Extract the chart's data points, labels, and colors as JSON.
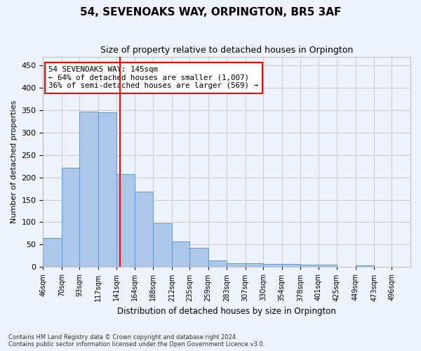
{
  "title": "54, SEVENOAKS WAY, ORPINGTON, BR5 3AF",
  "subtitle": "Size of property relative to detached houses in Orpington",
  "xlabel": "Distribution of detached houses by size in Orpington",
  "ylabel": "Number of detached properties",
  "footer_line1": "Contains HM Land Registry data © Crown copyright and database right 2024.",
  "footer_line2": "Contains public sector information licensed under the Open Government Licence v3.0.",
  "bar_color": "#aec6e8",
  "bar_edge_color": "#5b9bd5",
  "grid_color": "#cccccc",
  "vline_color": "red",
  "vline_x": 145,
  "annotation_text": "54 SEVENOAKS WAY: 145sqm\n← 64% of detached houses are smaller (1,007)\n36% of semi-detached houses are larger (569) →",
  "annotation_box_color": "white",
  "annotation_box_edge": "red",
  "bin_edges": [
    46,
    70,
    93,
    117,
    141,
    164,
    188,
    212,
    235,
    259,
    283,
    307,
    330,
    354,
    378,
    401,
    425,
    449,
    473,
    496,
    520
  ],
  "bar_heights": [
    65,
    222,
    347,
    346,
    208,
    168,
    98,
    57,
    43,
    14,
    8,
    8,
    7,
    7,
    5,
    5,
    0,
    4,
    0,
    0
  ],
  "ylim": [
    0,
    470
  ],
  "yticks": [
    0,
    50,
    100,
    150,
    200,
    250,
    300,
    350,
    400,
    450
  ],
  "background_color": "#eef2fa"
}
